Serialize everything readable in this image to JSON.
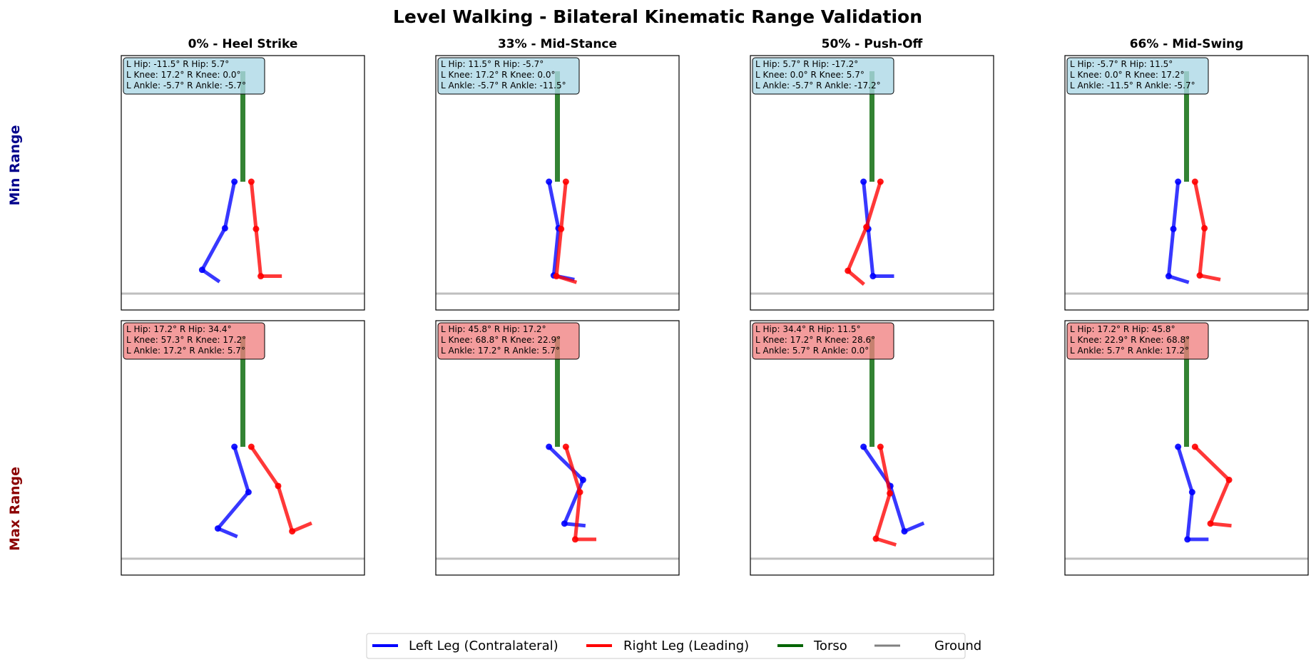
{
  "title": "Level Walking - Bilateral Kinematic Range Validation",
  "colors": {
    "left_leg": "#0000ff",
    "right_leg": "#ff0000",
    "torso": "#006400",
    "ground": "#808080",
    "min_box": "#add8e6",
    "max_box": "#f08080",
    "min_label": "#00008b",
    "max_label": "#8b0000"
  },
  "row_labels": [
    "Min Range",
    "Max Range"
  ],
  "column_titles": [
    "0% - Heel Strike",
    "33% - Mid-Stance",
    "50% - Push-Off",
    "66% - Mid-Swing"
  ],
  "legend": [
    {
      "key": "left_leg",
      "label": "Left Leg (Contralateral)"
    },
    {
      "key": "right_leg",
      "label": "Right Leg (Leading)"
    },
    {
      "key": "torso",
      "label": "Torso"
    },
    {
      "key": "ground",
      "label": "Ground"
    }
  ],
  "chart_data": {
    "type": "stick-figure-grid",
    "units": "degrees",
    "rows": [
      {
        "label": "Min Range",
        "panels": [
          {
            "title": "0% - Heel Strike",
            "l_hip": -11.5,
            "r_hip": 5.7,
            "l_knee": 17.2,
            "r_knee": 0.0,
            "l_ankle": -5.7,
            "r_ankle": -5.7,
            "lines": [
              "L Hip: -11.5°  R Hip: 5.7°",
              "L Knee: 17.2°  R Knee: 0.0°",
              "L Ankle: -5.7°  R Ankle: -5.7°"
            ]
          },
          {
            "title": "33% - Mid-Stance",
            "l_hip": 11.5,
            "r_hip": -5.7,
            "l_knee": 17.2,
            "r_knee": 0.0,
            "l_ankle": -5.7,
            "r_ankle": -11.5,
            "lines": [
              "L Hip: 11.5°  R Hip: -5.7°",
              "L Knee: 17.2°  R Knee: 0.0°",
              "L Ankle: -5.7°  R Ankle: -11.5°"
            ]
          },
          {
            "title": "50% - Push-Off",
            "l_hip": 5.7,
            "r_hip": -17.2,
            "l_knee": 0.0,
            "r_knee": 5.7,
            "l_ankle": -5.7,
            "r_ankle": -17.2,
            "lines": [
              "L Hip: 5.7°  R Hip: -17.2°",
              "L Knee: 0.0°  R Knee: 5.7°",
              "L Ankle: -5.7°  R Ankle: -17.2°"
            ]
          },
          {
            "title": "66% - Mid-Swing",
            "l_hip": -5.7,
            "r_hip": 11.5,
            "l_knee": 0.0,
            "r_knee": 17.2,
            "l_ankle": -11.5,
            "r_ankle": -5.7,
            "lines": [
              "L Hip: -5.7°  R Hip: 11.5°",
              "L Knee: 0.0°  R Knee: 17.2°",
              "L Ankle: -11.5°  R Ankle: -5.7°"
            ]
          }
        ]
      },
      {
        "label": "Max Range",
        "panels": [
          {
            "title": "0% - Heel Strike",
            "l_hip": 17.2,
            "r_hip": 34.4,
            "l_knee": 57.3,
            "r_knee": 17.2,
            "l_ankle": 17.2,
            "r_ankle": 5.7,
            "lines": [
              "L Hip: 17.2°  R Hip: 34.4°",
              "L Knee: 57.3°  R Knee: 17.2°",
              "L Ankle: 17.2°  R Ankle: 5.7°"
            ]
          },
          {
            "title": "33% - Mid-Stance",
            "l_hip": 45.8,
            "r_hip": 17.2,
            "l_knee": 68.8,
            "r_knee": 22.9,
            "l_ankle": 17.2,
            "r_ankle": 5.7,
            "lines": [
              "L Hip: 45.8°  R Hip: 17.2°",
              "L Knee: 68.8°  R Knee: 22.9°",
              "L Ankle: 17.2°  R Ankle: 5.7°"
            ]
          },
          {
            "title": "50% - Push-Off",
            "l_hip": 34.4,
            "r_hip": 11.5,
            "l_knee": 17.2,
            "r_knee": 28.6,
            "l_ankle": 5.7,
            "r_ankle": 0.0,
            "lines": [
              "L Hip: 34.4°  R Hip: 11.5°",
              "L Knee: 17.2°  R Knee: 28.6°",
              "L Ankle: 5.7°  R Ankle: 0.0°"
            ]
          },
          {
            "title": "66% - Mid-Swing",
            "l_hip": 17.2,
            "r_hip": 45.8,
            "l_knee": 22.9,
            "r_knee": 68.8,
            "l_ankle": 5.7,
            "r_ankle": 17.2,
            "lines": [
              "L Hip: 17.2°  R Hip: 45.8°",
              "L Knee: 22.9°  R Knee: 68.8°",
              "L Ankle: 5.7°  R Ankle: 17.2°"
            ]
          }
        ]
      }
    ]
  }
}
